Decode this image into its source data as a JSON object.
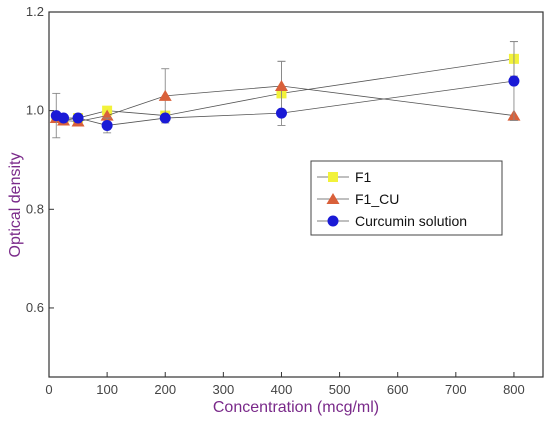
{
  "chart_data": {
    "type": "scatter",
    "xlabel": "Concentration (mcg/ml)",
    "ylabel": "Optical density",
    "xlim": [
      0,
      850
    ],
    "ylim": [
      0.46,
      1.2
    ],
    "x_ticks": [
      0,
      100,
      200,
      300,
      400,
      500,
      600,
      700,
      800
    ],
    "y_ticks": [
      0.6,
      0.8,
      1.0,
      1.2
    ],
    "y_tick_labels": [
      "0.6",
      "0.8",
      "1.0",
      "1.2"
    ],
    "grid": false,
    "legend_position": "right",
    "series": [
      {
        "name": "F1",
        "marker": "square",
        "color": "#f2f23a",
        "x": [
          12.5,
          25,
          50,
          100,
          200,
          400,
          800
        ],
        "y": [
          0.985,
          0.98,
          0.985,
          1.0,
          0.99,
          1.035,
          1.105
        ],
        "err": [
          0.0,
          0.0,
          0.0,
          0.0,
          0.0,
          0.065,
          0.035
        ]
      },
      {
        "name": "F1_CU",
        "marker": "triangle",
        "color": "#d9603a",
        "x": [
          12.5,
          25,
          50,
          100,
          200,
          400,
          800
        ],
        "y": [
          0.985,
          0.98,
          0.978,
          0.99,
          1.03,
          1.05,
          0.99
        ],
        "err": [
          0.0,
          0.0,
          0.0,
          0.0,
          0.055,
          0.05,
          0.0
        ]
      },
      {
        "name": "Curcumin solution",
        "marker": "circle",
        "color": "#1a1ad6",
        "x": [
          12.5,
          25,
          50,
          100,
          200,
          400,
          800
        ],
        "y": [
          0.99,
          0.985,
          0.985,
          0.97,
          0.985,
          0.995,
          1.06
        ],
        "err": [
          0.045,
          0.0,
          0.0,
          0.015,
          0.0,
          0.0,
          0.08
        ]
      }
    ]
  }
}
